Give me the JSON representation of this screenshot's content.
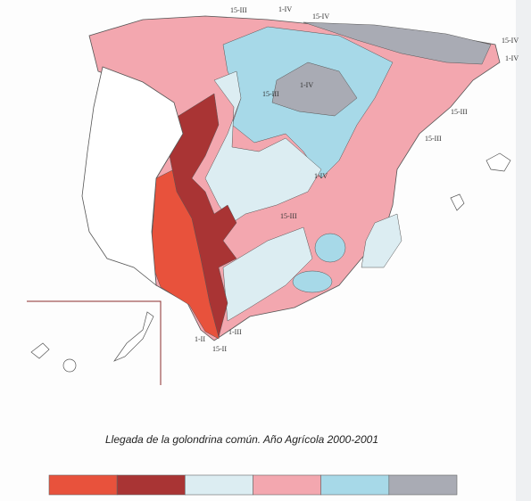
{
  "caption": "Llegada de la golondrina común. Año Agrícola 2000-2001",
  "isoline_labels": [
    "15-III",
    "1-IV",
    "15-IV",
    "15-IV",
    "1-IV",
    "15-III",
    "15-III",
    "15-III",
    "1-IV",
    "15-III",
    "1-IV",
    "1-II",
    "1-III",
    "15-II"
  ],
  "legend": {
    "colors": [
      "#e8523c",
      "#a93434",
      "#dcedf2",
      "#f3a7af",
      "#a7d9e8",
      "#a9abb4"
    ]
  }
}
